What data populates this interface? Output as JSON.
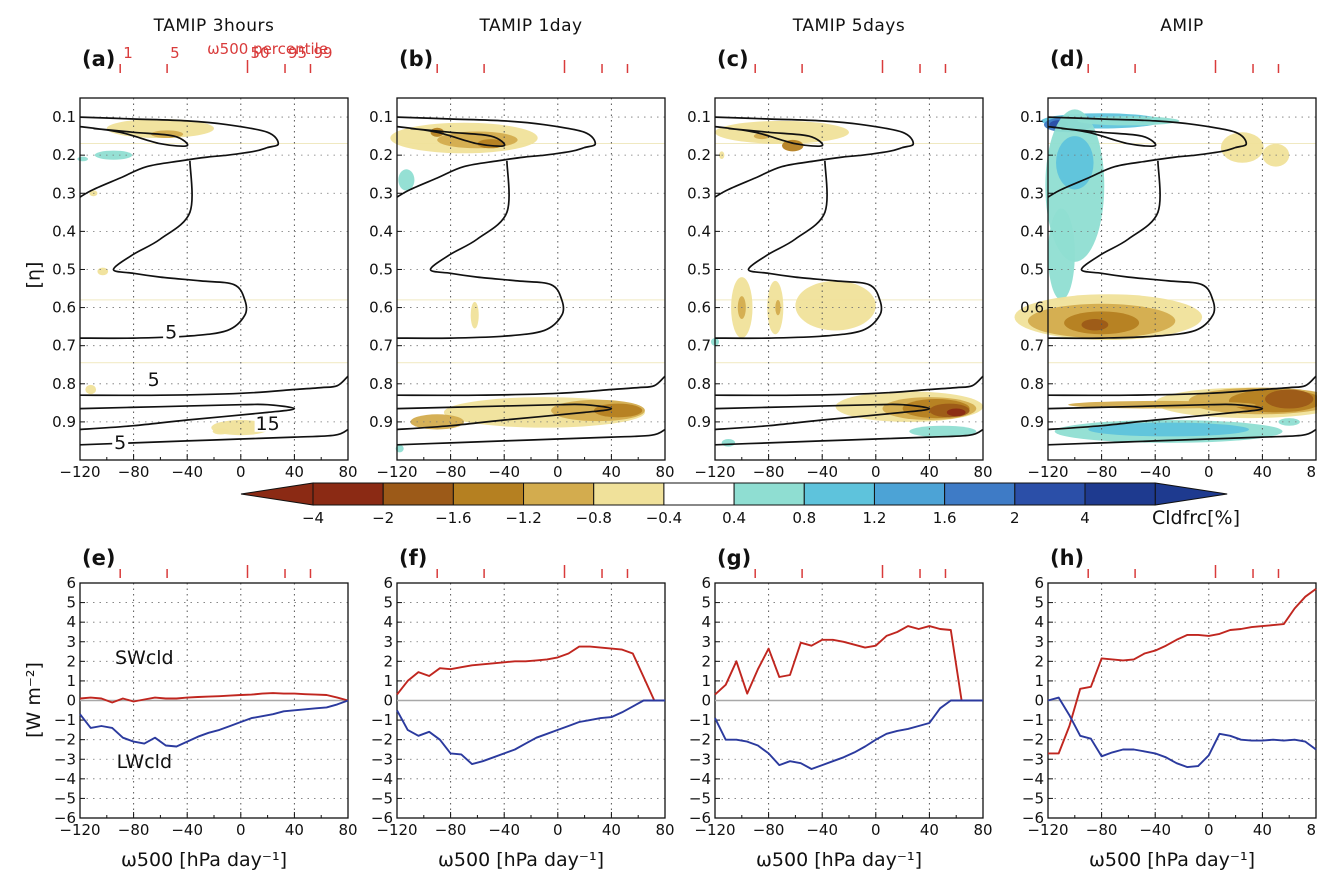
{
  "figure": {
    "top_titles": [
      "TAMIP  3hours",
      "TAMIP  1day",
      "TAMIP  5days",
      "AMIP"
    ],
    "panel_labels_top": [
      "(a)",
      "(b)",
      "(c)",
      "(d)"
    ],
    "panel_labels_bottom": [
      "(e)",
      "(f)",
      "(g)",
      "(h)"
    ],
    "top_ylabel": "[η]",
    "bottom_ylabel": "[W m⁻²]",
    "xlabel": "ω500 [hPa day⁻¹]",
    "percentile_title": "ω500  percentile",
    "colorbar_label": "Cldfrc[%]",
    "contour_labels": [
      "5",
      "5",
      "15",
      "5"
    ],
    "series_labels": {
      "sw": "SWcld",
      "lw": "LWcld"
    },
    "colors": {
      "sw": "#c0261f",
      "lw": "#2b3a9e",
      "contour": "#111111",
      "percentile": "#d93b3b"
    }
  },
  "chart_data": [
    {
      "type": "heatmap",
      "panels": [
        "(a) TAMIP 3hours",
        "(b) TAMIP 1day",
        "(c) TAMIP 5days",
        "(d) AMIP"
      ],
      "x_ticks": [
        -120,
        -80,
        -40,
        0,
        40,
        80
      ],
      "xlim": [
        -120,
        80
      ],
      "y_ticks": [
        0.1,
        0.2,
        0.3,
        0.4,
        0.5,
        0.6,
        0.7,
        0.8,
        0.9
      ],
      "ylim": [
        0.05,
        1.0
      ],
      "y_inverted": true,
      "percentile_ticks": {
        "labels": [
          "1",
          "5",
          "50",
          "95",
          "99"
        ],
        "omega": [
          -90,
          -55,
          5,
          33,
          52
        ]
      },
      "colorbar": {
        "levels": [
          "-4",
          "-2",
          "-1.6",
          "-1.2",
          "-0.8",
          "-0.4",
          "0.4",
          "0.8",
          "1.2",
          "1.6",
          "2",
          "4"
        ],
        "colors": [
          "#8b2a14",
          "#9c5a18",
          "#b58021",
          "#d3ac4e",
          "#f0e19a",
          "#ffffff",
          "#8fded2",
          "#5ec3dc",
          "#4ca3d6",
          "#3e7bc6",
          "#2b4fa8",
          "#1e3a8f"
        ],
        "label": "Cldfrc[%]"
      },
      "grid": true
    },
    {
      "type": "line",
      "panels": [
        "(e) TAMIP 3hours",
        "(f) TAMIP 1day",
        "(g) TAMIP 5days",
        "(h) AMIP"
      ],
      "xlabel": "ω500 [hPa day⁻¹]",
      "ylabel": "[W m⁻²]",
      "x": [
        -120,
        -112,
        -104,
        -96,
        -88,
        -80,
        -72,
        -64,
        -56,
        -48,
        -40,
        -32,
        -24,
        -16,
        -8,
        0,
        8,
        16,
        24,
        32,
        40,
        48,
        56,
        64,
        72,
        80
      ],
      "ylim": [
        -6,
        6
      ],
      "y_ticks": [
        -6,
        -5,
        -4,
        -3,
        -2,
        -1,
        0,
        1,
        2,
        3,
        4,
        5,
        6
      ],
      "x_ticks": [
        -120,
        -80,
        -40,
        0,
        40,
        80
      ],
      "grid": true,
      "series": [
        {
          "name": "SWcld",
          "panel": 0,
          "values": [
            0.1,
            0.15,
            0.1,
            -0.1,
            0.1,
            -0.05,
            0.05,
            0.15,
            0.1,
            0.1,
            0.15,
            0.18,
            0.2,
            0.22,
            0.25,
            0.28,
            0.3,
            0.35,
            0.38,
            0.35,
            0.35,
            0.32,
            0.3,
            0.28,
            0.15,
            0.0
          ]
        },
        {
          "name": "LWcld",
          "panel": 0,
          "values": [
            -0.7,
            -1.4,
            -1.3,
            -1.4,
            -1.9,
            -2.1,
            -2.2,
            -1.9,
            -2.3,
            -2.35,
            -2.1,
            -1.85,
            -1.65,
            -1.5,
            -1.3,
            -1.1,
            -0.9,
            -0.8,
            -0.7,
            -0.55,
            -0.5,
            -0.45,
            -0.4,
            -0.35,
            -0.2,
            0.0
          ]
        },
        {
          "name": "SWcld",
          "panel": 1,
          "values": [
            0.3,
            1.0,
            1.45,
            1.25,
            1.65,
            1.6,
            1.7,
            1.8,
            1.85,
            1.9,
            1.95,
            2.0,
            2.0,
            2.05,
            2.1,
            2.2,
            2.4,
            2.75,
            2.75,
            2.7,
            2.65,
            2.6,
            2.4,
            1.2,
            0.0,
            0.0
          ]
        },
        {
          "name": "LWcld",
          "panel": 1,
          "values": [
            -0.5,
            -1.5,
            -1.8,
            -1.6,
            -2.0,
            -2.7,
            -2.75,
            -3.25,
            -3.1,
            -2.9,
            -2.7,
            -2.5,
            -2.2,
            -1.9,
            -1.7,
            -1.5,
            -1.3,
            -1.1,
            -1.0,
            -0.9,
            -0.85,
            -0.6,
            -0.3,
            0.0,
            0.0,
            0.0
          ]
        },
        {
          "name": "SWcld",
          "panel": 2,
          "values": [
            0.3,
            0.8,
            2.0,
            0.35,
            1.6,
            2.65,
            1.2,
            1.3,
            2.95,
            2.8,
            3.1,
            3.1,
            3.0,
            2.85,
            2.7,
            2.8,
            3.3,
            3.5,
            3.8,
            3.65,
            3.8,
            3.65,
            3.6,
            0.0,
            0.0,
            0.0
          ]
        },
        {
          "name": "LWcld",
          "panel": 2,
          "values": [
            -0.9,
            -2.0,
            -2.0,
            -2.1,
            -2.3,
            -2.7,
            -3.3,
            -3.1,
            -3.2,
            -3.5,
            -3.3,
            -3.1,
            -2.9,
            -2.65,
            -2.35,
            -2.0,
            -1.7,
            -1.55,
            -1.45,
            -1.3,
            -1.15,
            -0.4,
            0.0,
            0.0,
            0.0,
            0.0
          ]
        },
        {
          "name": "SWcld",
          "panel": 3,
          "values": [
            -2.7,
            -2.7,
            -1.3,
            0.6,
            0.7,
            2.15,
            2.1,
            2.05,
            2.1,
            2.4,
            2.55,
            2.8,
            3.1,
            3.35,
            3.35,
            3.3,
            3.4,
            3.6,
            3.65,
            3.75,
            3.8,
            3.85,
            3.9,
            4.7,
            5.3,
            5.7
          ]
        },
        {
          "name": "LWcld",
          "panel": 3,
          "values": [
            0.0,
            0.15,
            -0.75,
            -1.8,
            -1.95,
            -2.85,
            -2.65,
            -2.5,
            -2.5,
            -2.6,
            -2.7,
            -2.9,
            -3.2,
            -3.4,
            -3.35,
            -2.8,
            -1.7,
            -1.8,
            -2.0,
            -2.05,
            -2.05,
            -2.0,
            -2.05,
            -2.0,
            -2.1,
            -2.5
          ]
        }
      ]
    }
  ]
}
